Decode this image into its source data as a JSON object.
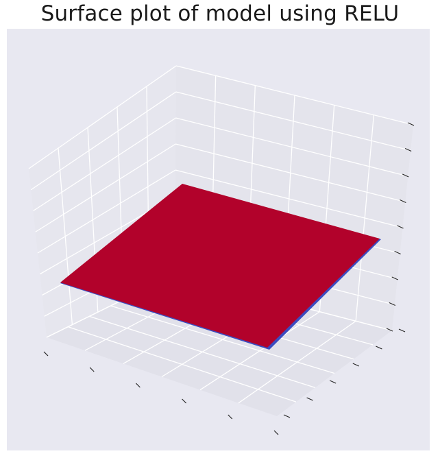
{
  "chart_data": {
    "type": "surface",
    "projection": "3d",
    "title": "Surface plot of model using RELU",
    "xlabel": "",
    "ylabel": "",
    "zlabel": "",
    "tick_labels_visible": false,
    "grid": true,
    "legend": "none",
    "surface": {
      "shape": "flat plane",
      "colormap_face": "#b2022b",
      "edge_color": "#3b4cc0"
    },
    "colors": {
      "axes_background": "#e8e8f1",
      "pane": "#e4e4ec",
      "grid": "#ffffff",
      "tick": "#262626"
    }
  }
}
